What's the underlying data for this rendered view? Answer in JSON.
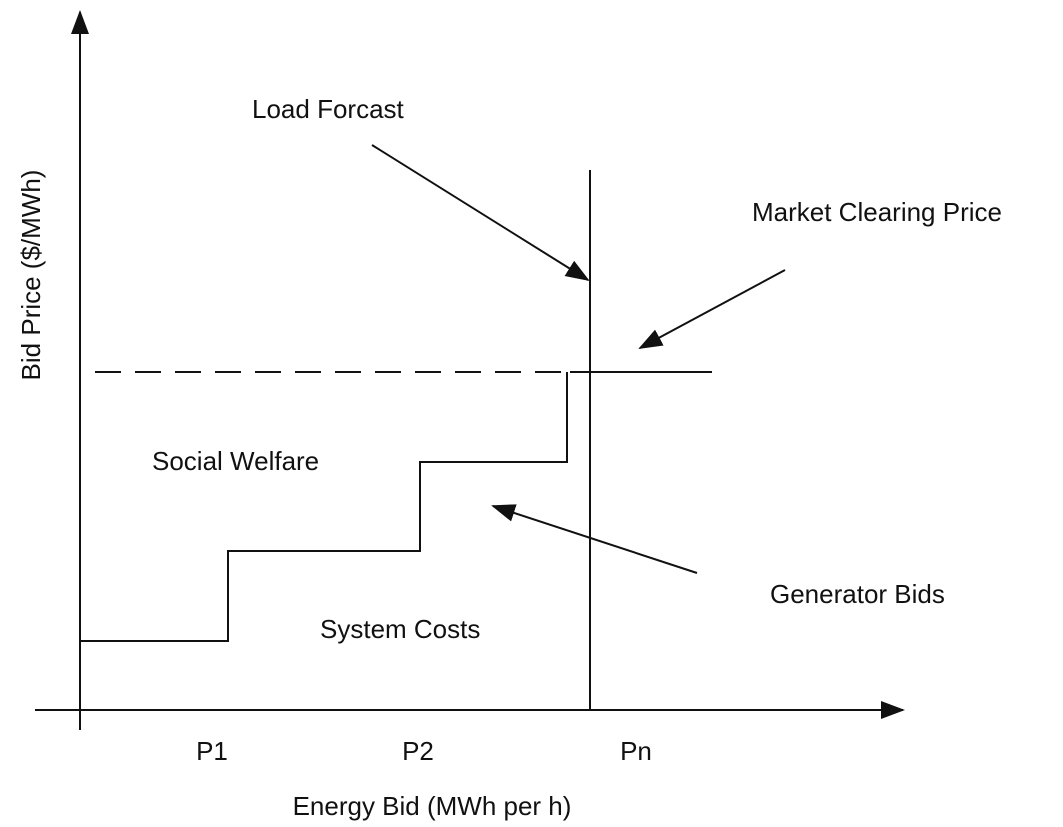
{
  "diagram": {
    "y_axis_label": "Bid Price ($/MWh)",
    "x_axis_label": "Energy Bid (MWh per h)",
    "annotations": {
      "load_forecast": "Load Forcast",
      "market_clearing_price": "Market Clearing Price",
      "social_welfare": "Social Welfare",
      "generator_bids": "Generator Bids",
      "system_costs": "System Costs"
    },
    "x_labels": [
      "P1",
      "P2",
      "Pn"
    ]
  }
}
